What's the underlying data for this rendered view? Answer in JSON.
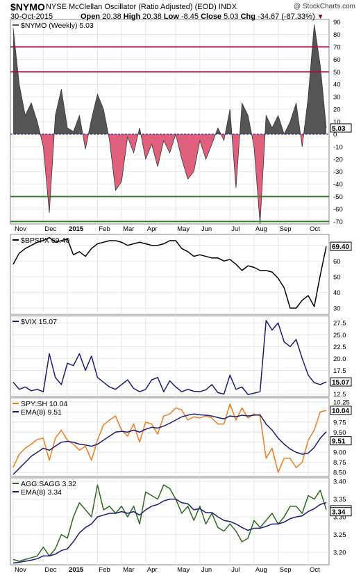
{
  "header": {
    "symbol": "$NYMO",
    "description": "NYSE McClellan Oscillator (Ratio Adjusted) (EOD)  INDX",
    "credit": "@ StockCharts.com",
    "date": "30-Oct-2015",
    "ohlc": {
      "open_label": "Open",
      "open": "20.38",
      "high_label": "High",
      "high": "20.38",
      "low_label": "Low",
      "low": "-8.45",
      "close_label": "Close",
      "close": "5.03",
      "chg_label": "Chg",
      "chg": "-34.67 (-87.33%)"
    }
  },
  "colors": {
    "pos_fill": "#555555",
    "neg_fill": "#e0607e",
    "upper_line": "#a0103c",
    "lower_line": "#2e7d1f",
    "black_line": "#000000",
    "navy_line": "#1a1a7a",
    "orange_line": "#f07c1c",
    "green_line": "#2a6a1a",
    "dashed_zero": "#1a1a7a"
  },
  "x_axis": {
    "labels": [
      "Nov",
      "Dec",
      "2015",
      "Feb",
      "Mar",
      "Apr",
      "May",
      "Jun",
      "Jul",
      "Aug",
      "Sep",
      "Oct"
    ],
    "bold_labels": [
      "2015"
    ]
  },
  "chart_data": [
    {
      "type": "area",
      "panel": "nymo",
      "legend": "$NYMO (Weekly) 5.03",
      "last_value": "5.03",
      "ylim": [
        -72,
        92
      ],
      "y_ticks": [
        90,
        80,
        70,
        60,
        50,
        40,
        30,
        20,
        10,
        0,
        -10,
        -20,
        -30,
        -40,
        -50,
        -60,
        -70
      ],
      "reference_lines": [
        70,
        50,
        -50,
        -70
      ],
      "x": [
        "Oct 31",
        "Nov 7",
        "Nov 14",
        "Nov 21",
        "Nov 28",
        "Dec 5",
        "Dec 12",
        "Dec 19",
        "Dec 26",
        "Jan 2",
        "Jan 9",
        "Jan 16",
        "Jan 23",
        "Jan 30",
        "Feb 6",
        "Feb 13",
        "Feb 20",
        "Feb 27",
        "Mar 6",
        "Mar 13",
        "Mar 20",
        "Mar 27",
        "Apr 3",
        "Apr 10",
        "Apr 17",
        "Apr 24",
        "May 1",
        "May 8",
        "May 15",
        "May 22",
        "May 29",
        "Jun 5",
        "Jun 12",
        "Jun 19",
        "Jun 26",
        "Jul 3",
        "Jul 10",
        "Jul 17",
        "Jul 24",
        "Jul 31",
        "Aug 7",
        "Aug 14",
        "Aug 21",
        "Aug 28",
        "Sep 4",
        "Sep 11",
        "Sep 18",
        "Sep 25",
        "Oct 2",
        "Oct 9",
        "Oct 16",
        "Oct 23",
        "Oct 30"
      ],
      "values": [
        85,
        40,
        15,
        25,
        10,
        -10,
        -63,
        15,
        36,
        5,
        2,
        15,
        -12,
        12,
        32,
        20,
        -5,
        -45,
        -38,
        -2,
        -15,
        5,
        -20,
        -8,
        -26,
        -5,
        -15,
        0,
        -20,
        -36,
        -30,
        -5,
        -20,
        -8,
        5,
        -5,
        20,
        -43,
        25,
        15,
        -10,
        -72,
        15,
        5,
        15,
        0,
        10,
        25,
        -10,
        30,
        88,
        55,
        5
      ]
    },
    {
      "type": "line",
      "panel": "bpspx",
      "legend": "$BPSPX 69.40",
      "last_value": "69.40",
      "ylim": [
        26,
        77
      ],
      "y_ticks": [
        70,
        60,
        50,
        40,
        30
      ],
      "x": [
        "Oct 31",
        "Nov 7",
        "Nov 14",
        "Nov 21",
        "Nov 28",
        "Dec 5",
        "Dec 12",
        "Dec 19",
        "Dec 26",
        "Jan 2",
        "Jan 9",
        "Jan 16",
        "Jan 23",
        "Jan 30",
        "Feb 6",
        "Feb 13",
        "Feb 20",
        "Feb 27",
        "Mar 6",
        "Mar 13",
        "Mar 20",
        "Mar 27",
        "Apr 3",
        "Apr 10",
        "Apr 17",
        "Apr 24",
        "May 1",
        "May 8",
        "May 15",
        "May 22",
        "May 29",
        "Jun 5",
        "Jun 12",
        "Jun 19",
        "Jun 26",
        "Jul 3",
        "Jul 10",
        "Jul 17",
        "Jul 24",
        "Jul 31",
        "Aug 7",
        "Aug 14",
        "Aug 21",
        "Aug 28",
        "Sep 4",
        "Sep 11",
        "Sep 18",
        "Sep 25",
        "Oct 2",
        "Oct 9",
        "Oct 16",
        "Oct 23",
        "Oct 30"
      ],
      "values": [
        58,
        65,
        68,
        70,
        72,
        73,
        75,
        72,
        73,
        74,
        64,
        66,
        63,
        68,
        71,
        72,
        73,
        73,
        72,
        70,
        71,
        72,
        71,
        70,
        70,
        71,
        73,
        73,
        68,
        66,
        63,
        64,
        63,
        62,
        62,
        60,
        61,
        58,
        54,
        57,
        56,
        54,
        54,
        53,
        49,
        43,
        30,
        30,
        35,
        38,
        31,
        51,
        69.4
      ]
    },
    {
      "type": "line",
      "panel": "vix",
      "legend": "$VIX 15.07",
      "last_value": "15.07",
      "ylim": [
        12,
        29
      ],
      "y_ticks": [
        27.5,
        25.0,
        22.5,
        20.0,
        17.5,
        15.0,
        12.5
      ],
      "x": [
        "Oct 31",
        "Nov 7",
        "Nov 14",
        "Nov 21",
        "Nov 28",
        "Dec 5",
        "Dec 12",
        "Dec 19",
        "Dec 26",
        "Jan 2",
        "Jan 9",
        "Jan 16",
        "Jan 23",
        "Jan 30",
        "Feb 6",
        "Feb 13",
        "Feb 20",
        "Feb 27",
        "Mar 6",
        "Mar 13",
        "Mar 20",
        "Mar 27",
        "Apr 3",
        "Apr 10",
        "Apr 17",
        "Apr 24",
        "May 1",
        "May 8",
        "May 15",
        "May 22",
        "May 29",
        "Jun 5",
        "Jun 12",
        "Jun 19",
        "Jun 26",
        "Jul 3",
        "Jul 10",
        "Jul 17",
        "Jul 24",
        "Jul 31",
        "Aug 7",
        "Aug 14",
        "Aug 21",
        "Aug 28",
        "Sep 4",
        "Sep 11",
        "Sep 18",
        "Sep 25",
        "Oct 2",
        "Oct 9",
        "Oct 16",
        "Oct 23",
        "Oct 30"
      ],
      "values": [
        15,
        13.5,
        14,
        13.2,
        13.5,
        13,
        21,
        16,
        14.5,
        19,
        18.5,
        21,
        17.5,
        20.5,
        16,
        15,
        14,
        13.5,
        14.5,
        15.5,
        13.7,
        13,
        13.5,
        15.5,
        16,
        13,
        15.3,
        14,
        13,
        13.5,
        13.1,
        13,
        13.4,
        14.5,
        12.8,
        12.5,
        16.5,
        13.5,
        14,
        12.4,
        12.7,
        13,
        28.0,
        26.0,
        27.5,
        23.5,
        22.5,
        24,
        20,
        16.5,
        14.9,
        14.5,
        15.07
      ]
    },
    {
      "type": "line",
      "panel": "spy_sh",
      "legend": [
        "SPY:SH 10.04",
        "EMA(8) 9.51"
      ],
      "last_value": [
        "10.04",
        "9.51"
      ],
      "ylim": [
        8.4,
        10.35
      ],
      "y_ticks": [
        10.25,
        10.0,
        9.75,
        9.5,
        9.25,
        9.0,
        8.75,
        8.5
      ],
      "x": [
        "Oct 31",
        "Nov 7",
        "Nov 14",
        "Nov 21",
        "Nov 28",
        "Dec 5",
        "Dec 12",
        "Dec 19",
        "Dec 26",
        "Jan 2",
        "Jan 9",
        "Jan 16",
        "Jan 23",
        "Jan 30",
        "Feb 6",
        "Feb 13",
        "Feb 20",
        "Feb 27",
        "Mar 6",
        "Mar 13",
        "Mar 20",
        "Mar 27",
        "Apr 3",
        "Apr 10",
        "Apr 17",
        "Apr 24",
        "May 1",
        "May 8",
        "May 15",
        "May 22",
        "May 29",
        "Jun 5",
        "Jun 12",
        "Jun 19",
        "Jun 26",
        "Jul 3",
        "Jul 10",
        "Jul 17",
        "Jul 24",
        "Jul 31",
        "Aug 7",
        "Aug 14",
        "Aug 21",
        "Aug 28",
        "Sep 4",
        "Sep 11",
        "Sep 18",
        "Sep 25",
        "Oct 2",
        "Oct 9",
        "Oct 16",
        "Oct 23",
        "Oct 30"
      ],
      "series": [
        {
          "name": "SPY:SH",
          "color": "orange_line",
          "values": [
            8.63,
            8.95,
            9.1,
            9.2,
            9.32,
            9.35,
            8.8,
            9.35,
            9.55,
            9.3,
            9.2,
            9.05,
            9.15,
            8.8,
            9.3,
            9.68,
            9.8,
            9.9,
            9.55,
            9.4,
            9.7,
            9.25,
            9.75,
            9.7,
            9.45,
            9.9,
            9.95,
            10.1,
            10.05,
            9.8,
            9.88,
            9.85,
            9.9,
            9.85,
            9.7,
            9.7,
            10.2,
            9.8,
            10.1,
            9.85,
            9.95,
            9.9,
            8.85,
            9.1,
            8.5,
            8.85,
            8.85,
            8.62,
            8.75,
            9.3,
            9.55,
            10.0,
            10.04
          ]
        },
        {
          "name": "EMA(8)",
          "color": "navy_line",
          "values": [
            8.45,
            8.6,
            8.75,
            8.9,
            9.0,
            9.1,
            9.05,
            9.15,
            9.25,
            9.27,
            9.25,
            9.2,
            9.18,
            9.15,
            9.2,
            9.3,
            9.4,
            9.5,
            9.52,
            9.5,
            9.55,
            9.5,
            9.57,
            9.62,
            9.6,
            9.65,
            9.72,
            9.8,
            9.88,
            9.92,
            9.95,
            9.93,
            9.92,
            9.9,
            9.86,
            9.83,
            9.9,
            9.88,
            9.92,
            9.9,
            9.92,
            9.93,
            9.7,
            9.55,
            9.35,
            9.2,
            9.08,
            9.0,
            8.95,
            8.98,
            9.12,
            9.35,
            9.51
          ]
        }
      ]
    },
    {
      "type": "line",
      "panel": "agg_sagg",
      "legend": [
        "AGG:SAGG 3.32",
        "EMA(8) 3.34"
      ],
      "last_value": [
        "3.32",
        "3.34"
      ],
      "ylim": [
        3.165,
        3.41
      ],
      "y_ticks": [
        3.4,
        3.35,
        3.3,
        3.25,
        3.2
      ],
      "x": [
        "Oct 31",
        "Nov 7",
        "Nov 14",
        "Nov 21",
        "Nov 28",
        "Dec 5",
        "Dec 12",
        "Dec 19",
        "Dec 26",
        "Jan 2",
        "Jan 9",
        "Jan 16",
        "Jan 23",
        "Jan 30",
        "Feb 6",
        "Feb 13",
        "Feb 20",
        "Feb 27",
        "Mar 6",
        "Mar 13",
        "Mar 20",
        "Mar 27",
        "Apr 3",
        "Apr 10",
        "Apr 17",
        "Apr 24",
        "May 1",
        "May 8",
        "May 15",
        "May 22",
        "May 29",
        "Jun 5",
        "Jun 12",
        "Jun 19",
        "Jun 26",
        "Jul 3",
        "Jul 10",
        "Jul 17",
        "Jul 24",
        "Jul 31",
        "Aug 7",
        "Aug 14",
        "Aug 21",
        "Aug 28",
        "Sep 4",
        "Sep 11",
        "Sep 18",
        "Sep 25",
        "Oct 2",
        "Oct 9",
        "Oct 16",
        "Oct 23",
        "Oct 30"
      ],
      "series": [
        {
          "name": "AGG:SAGG",
          "color": "green_line",
          "values": [
            3.18,
            3.175,
            3.18,
            3.185,
            3.19,
            3.215,
            3.19,
            3.21,
            3.25,
            3.24,
            3.3,
            3.34,
            3.32,
            3.3,
            3.39,
            3.32,
            3.33,
            3.31,
            3.33,
            3.3,
            3.33,
            3.28,
            3.37,
            3.36,
            3.35,
            3.39,
            3.38,
            3.35,
            3.31,
            3.33,
            3.29,
            3.33,
            3.28,
            3.31,
            3.27,
            3.26,
            3.28,
            3.26,
            3.23,
            3.24,
            3.29,
            3.27,
            3.29,
            3.31,
            3.28,
            3.3,
            3.33,
            3.33,
            3.31,
            3.36,
            3.35,
            3.375,
            3.32
          ]
        },
        {
          "name": "EMA(8)",
          "color": "navy_line",
          "values": [
            3.17,
            3.172,
            3.175,
            3.178,
            3.182,
            3.19,
            3.19,
            3.195,
            3.205,
            3.21,
            3.23,
            3.255,
            3.27,
            3.28,
            3.3,
            3.305,
            3.31,
            3.31,
            3.315,
            3.31,
            3.315,
            3.305,
            3.32,
            3.33,
            3.335,
            3.345,
            3.35,
            3.35,
            3.34,
            3.337,
            3.32,
            3.323,
            3.312,
            3.312,
            3.3,
            3.29,
            3.287,
            3.28,
            3.27,
            3.262,
            3.268,
            3.268,
            3.273,
            3.28,
            3.28,
            3.285,
            3.295,
            3.3,
            3.303,
            3.315,
            3.323,
            3.335,
            3.34
          ]
        }
      ]
    }
  ]
}
